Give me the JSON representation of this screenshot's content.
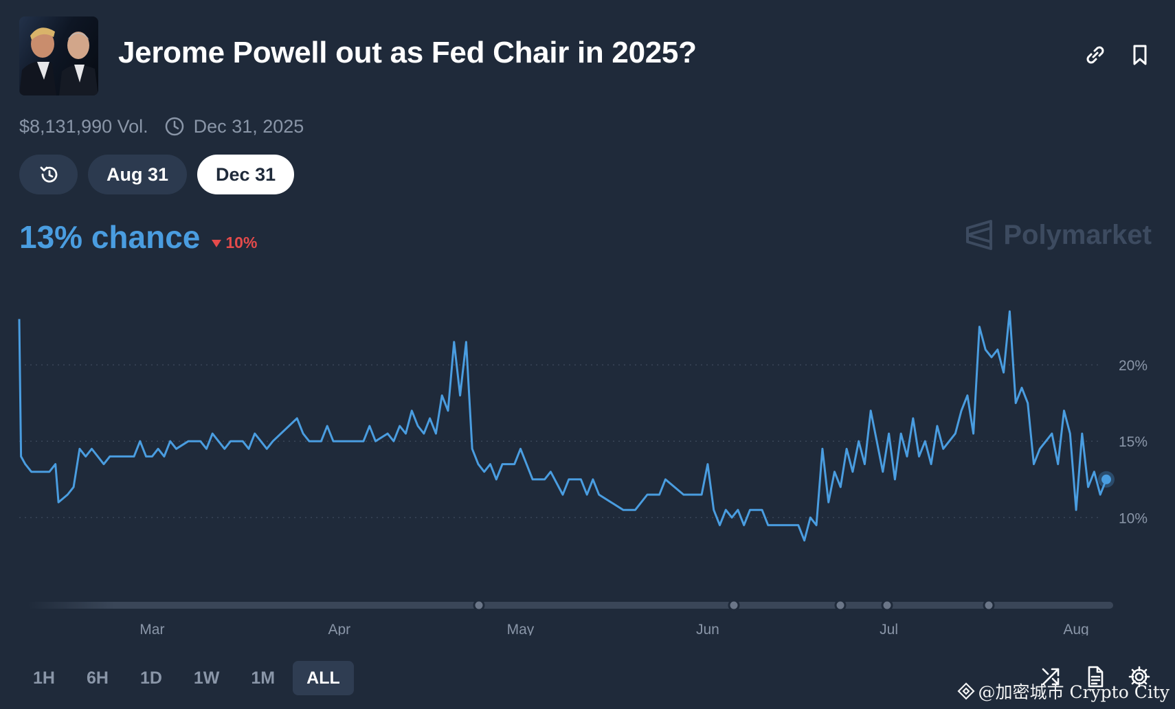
{
  "title": "Jerome Powell out as Fed Chair in 2025?",
  "volume": "$8,131,990 Vol.",
  "end_date": "Dec 31, 2025",
  "date_pills": [
    {
      "label": "Aug 31",
      "active": false
    },
    {
      "label": "Dec 31",
      "active": true
    }
  ],
  "chance_text": "13% chance",
  "delta_text": "10%",
  "brand": "Polymarket",
  "time_tabs": [
    "1H",
    "6H",
    "1D",
    "1W",
    "1M",
    "ALL"
  ],
  "active_tab": "ALL",
  "watermark": "@加密城市 Crypto City",
  "colors": {
    "accent": "#4a9de0",
    "negative": "#e54b4b",
    "background": "#1f2a3a"
  },
  "icons": [
    "link-icon",
    "bookmark-icon",
    "clock-icon",
    "history-icon",
    "swap-icon",
    "document-icon",
    "gear-icon"
  ],
  "chart_data": {
    "type": "line",
    "series": [
      {
        "points": [
          [
            "02-07",
            23
          ],
          [
            "02-07.3",
            14
          ],
          [
            "02-08",
            13.5
          ],
          [
            "02-09",
            13
          ],
          [
            "02-12",
            13
          ],
          [
            "02-13",
            13.5
          ],
          [
            "02-13.5",
            11
          ],
          [
            "02-15",
            11.5
          ],
          [
            "02-16",
            12
          ],
          [
            "02-17",
            14.5
          ],
          [
            "02-18",
            14
          ],
          [
            "02-19",
            14.5
          ],
          [
            "02-20",
            14
          ],
          [
            "02-21",
            13.5
          ],
          [
            "02-22",
            14
          ],
          [
            "02-26",
            14
          ],
          [
            "02-27",
            15
          ],
          [
            "02-28",
            14
          ],
          [
            "03-01",
            14
          ],
          [
            "03-02",
            14.5
          ],
          [
            "03-03",
            14
          ],
          [
            "03-04",
            15
          ],
          [
            "03-05",
            14.5
          ],
          [
            "03-07",
            15
          ],
          [
            "03-09",
            15
          ],
          [
            "03-10",
            14.5
          ],
          [
            "03-11",
            15.5
          ],
          [
            "03-13",
            14.5
          ],
          [
            "03-14",
            15
          ],
          [
            "03-16",
            15
          ],
          [
            "03-17",
            14.5
          ],
          [
            "03-18",
            15.5
          ],
          [
            "03-19",
            15
          ],
          [
            "03-20",
            14.5
          ],
          [
            "03-21",
            15
          ],
          [
            "03-25",
            16.5
          ],
          [
            "03-26",
            15.5
          ],
          [
            "03-27",
            15
          ],
          [
            "03-29",
            15
          ],
          [
            "03-30",
            16
          ],
          [
            "03-31",
            15
          ],
          [
            "04-03",
            15
          ],
          [
            "04-05",
            15
          ],
          [
            "04-06",
            16
          ],
          [
            "04-07",
            15
          ],
          [
            "04-09",
            15.5
          ],
          [
            "04-10",
            15
          ],
          [
            "04-11",
            16
          ],
          [
            "04-12",
            15.5
          ],
          [
            "04-13",
            17
          ],
          [
            "04-14",
            16
          ],
          [
            "04-15",
            15.5
          ],
          [
            "04-16",
            16.5
          ],
          [
            "04-17",
            15.5
          ],
          [
            "04-18",
            18
          ],
          [
            "04-19",
            17
          ],
          [
            "04-20",
            21.5
          ],
          [
            "04-21",
            18
          ],
          [
            "04-22",
            21.5
          ],
          [
            "04-23",
            14.5
          ],
          [
            "04-24",
            13.5
          ],
          [
            "04-25",
            13
          ],
          [
            "04-26",
            13.5
          ],
          [
            "04-27",
            12.5
          ],
          [
            "04-28",
            13.5
          ],
          [
            "04-30",
            13.5
          ],
          [
            "05-01",
            14.5
          ],
          [
            "05-02",
            13.5
          ],
          [
            "05-03",
            12.5
          ],
          [
            "05-05",
            12.5
          ],
          [
            "05-06",
            13
          ],
          [
            "05-08",
            11.5
          ],
          [
            "05-09",
            12.5
          ],
          [
            "05-11",
            12.5
          ],
          [
            "05-12",
            11.5
          ],
          [
            "05-13",
            12.5
          ],
          [
            "05-14",
            11.5
          ],
          [
            "05-18",
            10.5
          ],
          [
            "05-20",
            10.5
          ],
          [
            "05-22",
            11.5
          ],
          [
            "05-24",
            11.5
          ],
          [
            "05-25",
            12.5
          ],
          [
            "05-28",
            11.5
          ],
          [
            "05-31",
            11.5
          ],
          [
            "06-01",
            13.5
          ],
          [
            "06-02",
            10.5
          ],
          [
            "06-03",
            9.5
          ],
          [
            "06-04",
            10.5
          ],
          [
            "06-05",
            10
          ],
          [
            "06-06",
            10.5
          ],
          [
            "06-07",
            9.5
          ],
          [
            "06-08",
            10.5
          ],
          [
            "06-10",
            10.5
          ],
          [
            "06-11",
            9.5
          ],
          [
            "06-16",
            9.5
          ],
          [
            "06-17",
            8.5
          ],
          [
            "06-18",
            10
          ],
          [
            "06-19",
            9.5
          ],
          [
            "06-20",
            14.5
          ],
          [
            "06-21",
            11
          ],
          [
            "06-22",
            13
          ],
          [
            "06-23",
            12
          ],
          [
            "06-24",
            14.5
          ],
          [
            "06-25",
            13
          ],
          [
            "06-26",
            15
          ],
          [
            "06-27",
            13.5
          ],
          [
            "06-28",
            17
          ],
          [
            "06-29",
            15
          ],
          [
            "06-30",
            13
          ],
          [
            "07-01",
            15.5
          ],
          [
            "07-02",
            12.5
          ],
          [
            "07-03",
            15.5
          ],
          [
            "07-04",
            14
          ],
          [
            "07-05",
            16.5
          ],
          [
            "07-06",
            14
          ],
          [
            "07-07",
            15
          ],
          [
            "07-08",
            13.5
          ],
          [
            "07-09",
            16
          ],
          [
            "07-10",
            14.5
          ],
          [
            "07-11",
            15
          ],
          [
            "07-12",
            15.5
          ],
          [
            "07-13",
            17
          ],
          [
            "07-14",
            18
          ],
          [
            "07-15",
            15.5
          ],
          [
            "07-16",
            22.5
          ],
          [
            "07-17",
            21
          ],
          [
            "07-18",
            20.5
          ],
          [
            "07-19",
            21
          ],
          [
            "07-20",
            19.5
          ],
          [
            "07-21",
            23.5
          ],
          [
            "07-22",
            17.5
          ],
          [
            "07-23",
            18.5
          ],
          [
            "07-24",
            17.5
          ],
          [
            "07-25",
            13.5
          ],
          [
            "07-26",
            14.5
          ],
          [
            "07-28",
            15.5
          ],
          [
            "07-29",
            13.5
          ],
          [
            "07-30",
            17
          ],
          [
            "07-31",
            15.5
          ],
          [
            "08-01",
            10.5
          ],
          [
            "08-02",
            15.5
          ],
          [
            "08-03",
            12
          ],
          [
            "08-04",
            13
          ],
          [
            "08-05",
            11.5
          ],
          [
            "08-06",
            12.5
          ]
        ]
      }
    ],
    "x_ticks": [
      "Mar",
      "Apr",
      "May",
      "Jun",
      "Jul",
      "Aug"
    ],
    "y_ticks": [
      "10%",
      "15%",
      "20%"
    ],
    "ylim": [
      7,
      25
    ],
    "grid": "horizontal-dotted",
    "last_value": 12.5
  }
}
